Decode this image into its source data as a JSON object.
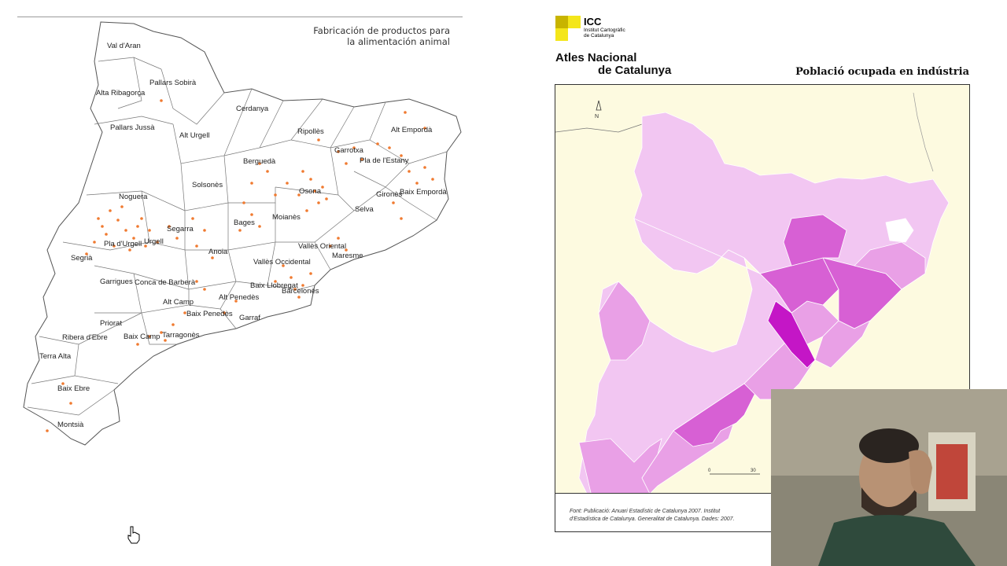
{
  "left_map": {
    "title_line1": "Fabricación de productos para",
    "title_line2": "la alimentación animal",
    "comarques": [
      "Val d'Aran",
      "Pallars Sobirà",
      "Alta Ribagorça",
      "Pallars Jussà",
      "Alt Urgell",
      "Cerdanya",
      "Ripollès",
      "Garrotxa",
      "Alt Empordà",
      "Pla de l'Estany",
      "Berguedà",
      "Solsonès",
      "Osona",
      "Gironès",
      "Baix Empordà",
      "Noguera",
      "Selva",
      "Segarra",
      "Bages",
      "Moianès",
      "Pla d'Urgell",
      "Urgell",
      "Segrià",
      "Anoia",
      "Vallès Oriental",
      "Maresme",
      "Vallès Occidental",
      "Garrigues",
      "Conca de Barberà",
      "Baix Llobregat",
      "Barcelonès",
      "Alt Camp",
      "Alt Penedès",
      "Baix Penedès",
      "Priorat",
      "Garraf",
      "Ribera d'Ebre",
      "Baix Camp",
      "Tarragonès",
      "Terra Alta",
      "Baix Ebre",
      "Montsià"
    ],
    "point_color": "#f07a30"
  },
  "right_map": {
    "logo_abbr": "ICC",
    "logo_line1": "Institut Cartogràfic",
    "logo_line2": "de Catalunya",
    "atlas_line1": "Atles Nacional",
    "atlas_line2": "de Catalunya",
    "title": "Població ocupada en indústria",
    "north": "N",
    "scale_start": "0",
    "scale_end": "30",
    "source_line1": "Font: Publicació: Anuari Estadístic de Catalunya 2007. Institut",
    "source_line2": "d'Estadística de Catalunya. Generalitat de Catalunya. Dades: 2007.",
    "colors": {
      "light": "#f2c6f2",
      "medium": "#e9a0e6",
      "strong": "#d760d4",
      "darkest": "#c416c6",
      "sea": "#fdfae0"
    }
  },
  "webcam": {
    "background": "#7a7466"
  }
}
